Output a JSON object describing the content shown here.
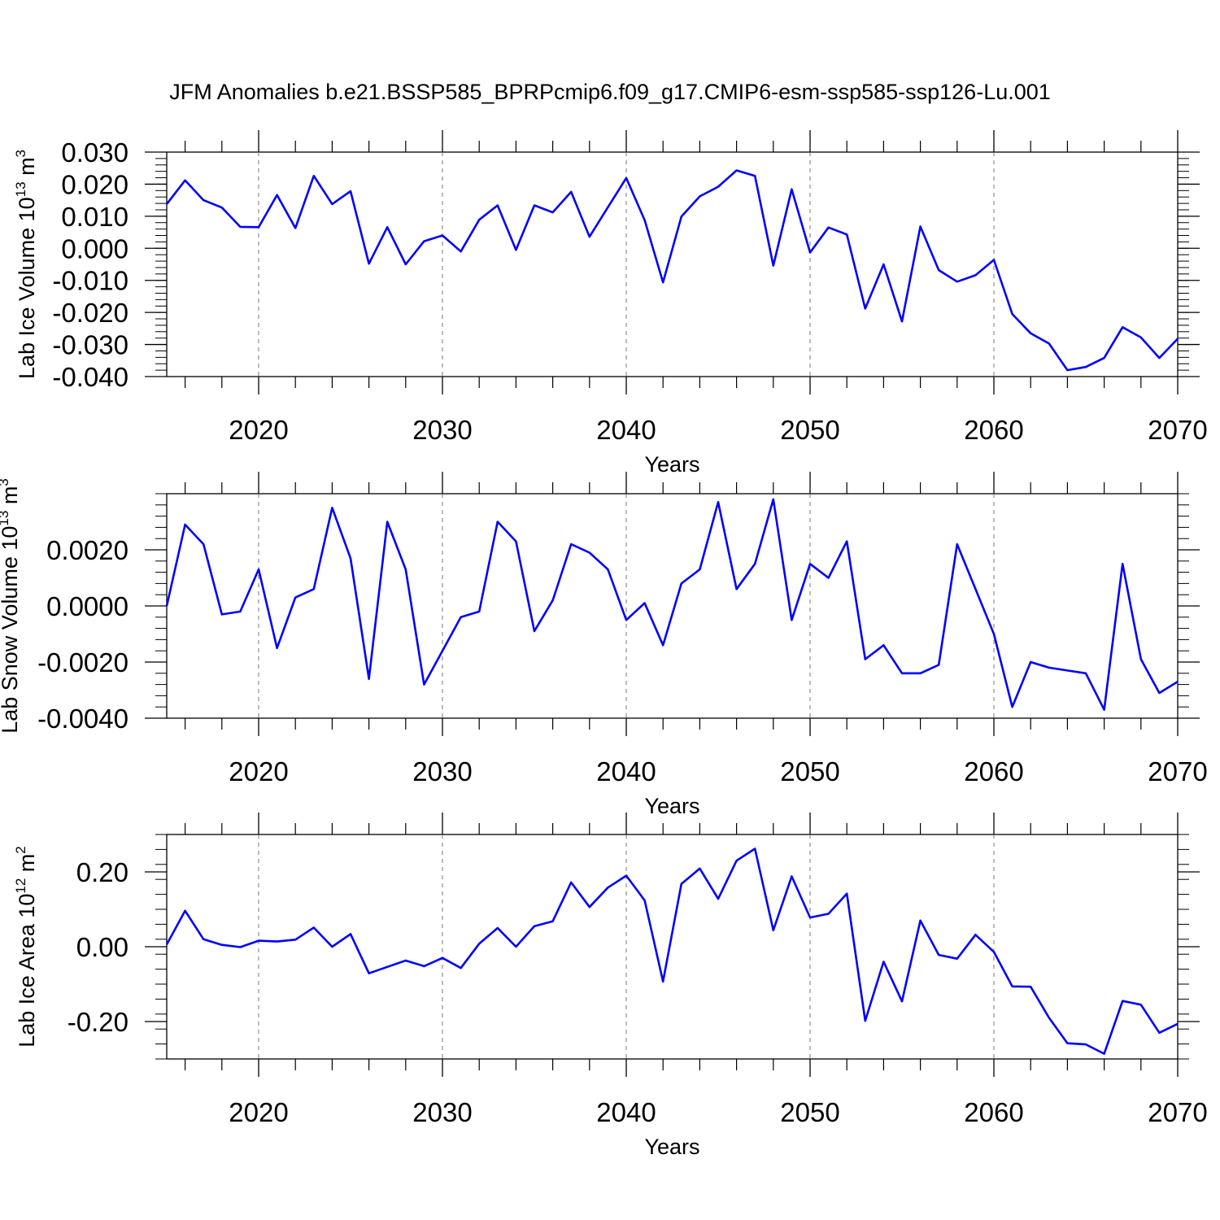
{
  "title": "JFM Anomalies b.e21.BSSP585_BPRPcmip6.f09_g17.CMIP6-esm-ssp585-ssp126-Lu.001",
  "line_color": "#0000ff",
  "chart_data": [
    {
      "type": "line",
      "xlabel": "Years",
      "ylabel": {
        "text": "Lab Ice Volume 10",
        "sup": "13",
        "unit": " m",
        "unit_sup": "3"
      },
      "xlim": [
        2015,
        2070
      ],
      "ylim": [
        -0.04,
        0.03
      ],
      "grid": "vertical dashed at major x ticks",
      "xticks": [
        2020,
        2030,
        2040,
        2050,
        2060,
        2070
      ],
      "yticks": [
        0.03,
        0.02,
        0.01,
        0.0,
        -0.01,
        -0.02,
        -0.03,
        -0.04
      ],
      "ytick_labels": [
        "0.030",
        "0.020",
        "0.010",
        "0.000",
        "-0.010",
        "-0.020",
        "-0.030",
        "-0.040"
      ],
      "x": [
        2015,
        2016,
        2017,
        2018,
        2019,
        2020,
        2021,
        2022,
        2023,
        2024,
        2025,
        2026,
        2027,
        2028,
        2029,
        2030,
        2031,
        2032,
        2033,
        2034,
        2035,
        2036,
        2037,
        2038,
        2039,
        2040,
        2041,
        2042,
        2043,
        2044,
        2045,
        2046,
        2047,
        2048,
        2049,
        2050,
        2051,
        2052,
        2053,
        2054,
        2055,
        2056,
        2057,
        2058,
        2059,
        2060,
        2061,
        2062,
        2063,
        2064,
        2065,
        2066,
        2067,
        2068,
        2069,
        2070
      ],
      "values": [
        0.0138,
        0.0212,
        0.015,
        0.0127,
        0.0067,
        0.0066,
        0.0166,
        0.0063,
        0.0226,
        0.0138,
        0.0178,
        -0.0048,
        0.0066,
        -0.005,
        0.0022,
        0.004,
        -0.001,
        0.0089,
        0.0134,
        -0.0005,
        0.0134,
        0.0112,
        0.0176,
        0.0036,
        0.0128,
        0.0219,
        0.0088,
        -0.0106,
        0.0099,
        0.0162,
        0.0192,
        0.0243,
        0.0226,
        -0.0054,
        0.0184,
        -0.0013,
        0.0065,
        0.0043,
        -0.0188,
        -0.005,
        -0.0228,
        0.0068,
        -0.0068,
        -0.0104,
        -0.0084,
        -0.0036,
        -0.0205,
        -0.0265,
        -0.0297,
        -0.038,
        -0.037,
        -0.0342,
        -0.0246,
        -0.0278,
        -0.0342,
        -0.0282
      ]
    },
    {
      "type": "line",
      "xlabel": "Years",
      "ylabel": {
        "text": "Lab Snow Volume 10",
        "sup": "13",
        "unit": " m",
        "unit_sup": "3"
      },
      "xlim": [
        2015,
        2070
      ],
      "ylim": [
        -0.004,
        0.004
      ],
      "grid": "vertical dashed at major x ticks",
      "xticks": [
        2020,
        2030,
        2040,
        2050,
        2060,
        2070
      ],
      "yticks": [
        0.002,
        0.0,
        -0.002,
        -0.004
      ],
      "ytick_labels": [
        "0.0020",
        "0.0000",
        "-0.0020",
        "-0.0040"
      ],
      "x": [
        2015,
        2016,
        2017,
        2018,
        2019,
        2020,
        2021,
        2022,
        2023,
        2024,
        2025,
        2026,
        2027,
        2028,
        2029,
        2030,
        2031,
        2032,
        2033,
        2034,
        2035,
        2036,
        2037,
        2038,
        2039,
        2040,
        2041,
        2042,
        2043,
        2044,
        2045,
        2046,
        2047,
        2048,
        2049,
        2050,
        2051,
        2052,
        2053,
        2054,
        2055,
        2056,
        2057,
        2058,
        2059,
        2060,
        2061,
        2062,
        2063,
        2064,
        2065,
        2066,
        2067,
        2068,
        2069,
        2070
      ],
      "values": [
        0.0,
        0.0029,
        0.0022,
        -0.0003,
        -0.0002,
        0.0013,
        -0.0015,
        0.0003,
        0.0006,
        0.0035,
        0.0017,
        -0.0026,
        0.003,
        0.0013,
        -0.0028,
        -0.0016,
        -0.0004,
        -0.0002,
        0.003,
        0.0023,
        -0.0009,
        0.0002,
        0.0022,
        0.0019,
        0.0013,
        -0.0005,
        0.0001,
        -0.0014,
        0.0008,
        0.0013,
        0.0037,
        0.0006,
        0.0015,
        0.0038,
        -0.0005,
        0.0015,
        0.001,
        0.0023,
        -0.0019,
        -0.0014,
        -0.0024,
        -0.0024,
        -0.0021,
        0.0022,
        0.0006,
        -0.001,
        -0.0036,
        -0.002,
        -0.0022,
        -0.0023,
        -0.0024,
        -0.0037,
        0.0015,
        -0.0019,
        -0.0031,
        -0.0027
      ]
    },
    {
      "type": "line",
      "xlabel": "Years",
      "ylabel": {
        "text": "Lab Ice Area 10",
        "sup": "12",
        "unit": " m",
        "unit_sup": "2"
      },
      "xlim": [
        2015,
        2070
      ],
      "ylim": [
        -0.3,
        0.3
      ],
      "grid": "vertical dashed at major x ticks",
      "xticks": [
        2020,
        2030,
        2040,
        2050,
        2060,
        2070
      ],
      "yticks": [
        0.2,
        0.0,
        -0.2
      ],
      "ytick_labels": [
        "0.20",
        "0.00",
        "-0.20"
      ],
      "x": [
        2015,
        2016,
        2017,
        2018,
        2019,
        2020,
        2021,
        2022,
        2023,
        2024,
        2025,
        2026,
        2027,
        2028,
        2029,
        2030,
        2031,
        2032,
        2033,
        2034,
        2035,
        2036,
        2037,
        2038,
        2039,
        2040,
        2041,
        2042,
        2043,
        2044,
        2045,
        2046,
        2047,
        2048,
        2049,
        2050,
        2051,
        2052,
        2053,
        2054,
        2055,
        2056,
        2057,
        2058,
        2059,
        2060,
        2061,
        2062,
        2063,
        2064,
        2065,
        2066,
        2067,
        2068,
        2069,
        2070
      ],
      "values": [
        0.006,
        0.096,
        0.02,
        0.005,
        -0.001,
        0.016,
        0.014,
        0.019,
        0.051,
        0.0,
        0.034,
        -0.071,
        -0.054,
        -0.037,
        -0.052,
        -0.03,
        -0.057,
        0.008,
        0.05,
        0.0,
        0.055,
        0.068,
        0.172,
        0.106,
        0.158,
        0.19,
        0.124,
        -0.093,
        0.168,
        0.209,
        0.128,
        0.23,
        0.262,
        0.044,
        0.188,
        0.078,
        0.088,
        0.142,
        -0.198,
        -0.04,
        -0.146,
        0.07,
        -0.022,
        -0.032,
        0.032,
        -0.014,
        -0.106,
        -0.107,
        -0.19,
        -0.258,
        -0.261,
        -0.286,
        -0.145,
        -0.155,
        -0.23,
        -0.206
      ]
    }
  ]
}
